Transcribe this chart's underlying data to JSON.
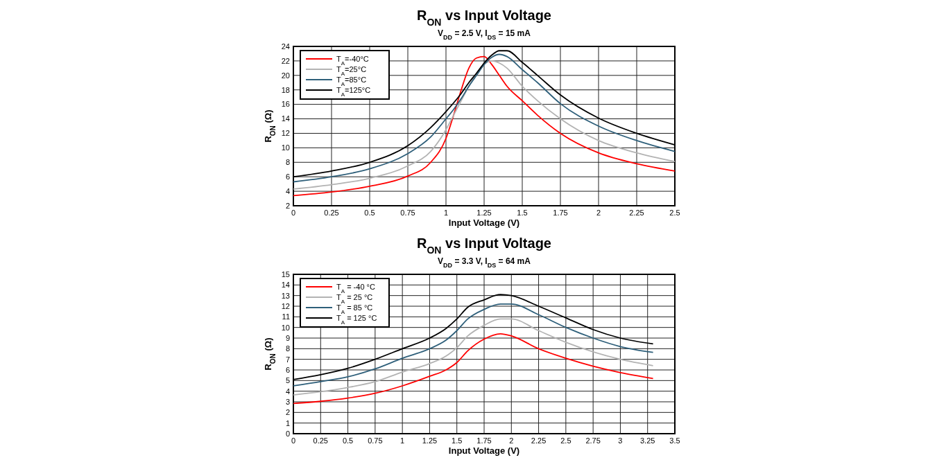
{
  "chart_data": [
    {
      "type": "line",
      "title": "R$_{ON}$ vs Input Voltage",
      "subtitle": "V$_{DD}$ = 2.5 V, I$_{DS}$ = 15 mA",
      "xlabel": "Input Voltage (V)",
      "ylabel": "R$_{ON}$ (Ω)",
      "x": [
        0,
        0.25,
        0.5,
        0.75,
        0.9,
        1,
        1.05,
        1.1,
        1.15,
        1.2,
        1.25,
        1.3,
        1.35,
        1.4,
        1.5,
        1.6,
        1.75,
        2,
        2.25,
        2.5
      ],
      "series": [
        {
          "name": "T$_{A}$=-40°C",
          "color": "#ff0000",
          "values": [
            3.4,
            3.9,
            4.7,
            6.1,
            8,
            11.3,
            14.5,
            18,
            21,
            22.4,
            22.6,
            21.5,
            20,
            18.5,
            16.5,
            14.5,
            12,
            9.3,
            7.8,
            6.8
          ]
        },
        {
          "name": "T$_{A}$=25°C",
          "color": "#b3b3b3",
          "values": [
            4.3,
            4.9,
            5.8,
            7.5,
            9.5,
            12.5,
            14.5,
            16.5,
            18.5,
            20.3,
            21.5,
            22,
            21.7,
            21,
            18.5,
            16.5,
            14,
            11,
            9.3,
            8.1
          ]
        },
        {
          "name": "T$_{A}$=85°C",
          "color": "#2e5f7a",
          "values": [
            5.3,
            6,
            7.1,
            9.2,
            11.5,
            14,
            15.3,
            16.8,
            18.5,
            20,
            21.5,
            22.5,
            22.9,
            22.6,
            20.8,
            19,
            16.1,
            13,
            11,
            9.5
          ]
        },
        {
          "name": "T$_{A}$=125°C",
          "color": "#000000",
          "values": [
            6,
            6.8,
            8,
            10.3,
            12.8,
            15,
            16.2,
            17.5,
            19,
            20.3,
            21.7,
            22.8,
            23.4,
            23.4,
            21.8,
            20,
            17.3,
            14.1,
            12,
            10.4
          ]
        }
      ],
      "xlim": [
        0,
        2.5
      ],
      "xticks": [
        0,
        0.25,
        0.5,
        0.75,
        1,
        1.25,
        1.5,
        1.75,
        2,
        2.25,
        2.5
      ],
      "ylim": [
        2,
        24
      ],
      "yticks": [
        2,
        4,
        6,
        8,
        10,
        12,
        14,
        16,
        18,
        20,
        22,
        24
      ],
      "grid": true,
      "legend": "top left"
    },
    {
      "type": "line",
      "title": "R$_{ON}$ vs Input Voltage",
      "subtitle": "V$_{DD}$ = 3.3 V, I$_{DS}$ = 64 mA",
      "xlabel": "Input Voltage (V)",
      "ylabel": "R$_{ON}$ (Ω)",
      "x": [
        0,
        0.25,
        0.5,
        0.75,
        1,
        1.25,
        1.4,
        1.5,
        1.6,
        1.75,
        1.9,
        2,
        2.25,
        2.5,
        2.75,
        3,
        3.3
      ],
      "series": [
        {
          "name": "T$_{A}$ = -40 °C",
          "color": "#ff0000",
          "values": [
            2.85,
            3.05,
            3.35,
            3.8,
            4.5,
            5.4,
            6,
            6.7,
            7.8,
            8.9,
            9.4,
            9.2,
            8,
            7.1,
            6.35,
            5.75,
            5.2
          ]
        },
        {
          "name": "T$_{A}$ = 25 °C",
          "color": "#b3b3b3",
          "values": [
            3.65,
            3.95,
            4.35,
            4.9,
            5.8,
            6.6,
            7.3,
            8.1,
            9.2,
            10.2,
            10.8,
            10.8,
            9.7,
            8.6,
            7.7,
            7,
            6.4
          ]
        },
        {
          "name": "T$_{A}$ = 85 °C",
          "color": "#2e5f7a",
          "values": [
            4.5,
            4.9,
            5.35,
            6.1,
            7.1,
            8,
            8.8,
            9.7,
            10.8,
            11.7,
            12.2,
            12.2,
            11.2,
            10,
            9,
            8.2,
            7.65
          ]
        },
        {
          "name": "T$_{A}$ = 125 °C",
          "color": "#000000",
          "values": [
            5.1,
            5.55,
            6.15,
            7,
            8,
            9,
            9.9,
            10.8,
            11.9,
            12.6,
            13.1,
            13,
            12,
            10.9,
            9.8,
            9,
            8.45
          ]
        }
      ],
      "xlim": [
        0,
        3.5
      ],
      "xticks": [
        0,
        0.25,
        0.5,
        0.75,
        1,
        1.25,
        1.5,
        1.75,
        2,
        2.25,
        2.5,
        2.75,
        3,
        3.25,
        3.5
      ],
      "ylim": [
        0,
        15
      ],
      "yticks": [
        0,
        1,
        2,
        3,
        4,
        5,
        6,
        7,
        8,
        9,
        10,
        11,
        12,
        13,
        14,
        15
      ],
      "grid": true,
      "legend": "top left"
    }
  ]
}
